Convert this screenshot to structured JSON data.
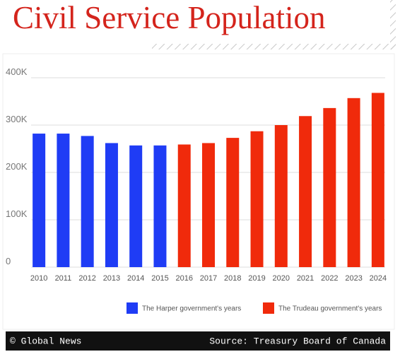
{
  "chart_data": {
    "type": "bar",
    "title": "Civil Service Population",
    "categories": [
      "2010",
      "2011",
      "2012",
      "2013",
      "2014",
      "2015",
      "2016",
      "2017",
      "2018",
      "2019",
      "2020",
      "2021",
      "2022",
      "2023",
      "2024"
    ],
    "series": [
      {
        "name": "The Harper government's years",
        "color": "#1f3cf5",
        "values": [
          282000,
          282000,
          277000,
          262000,
          257000,
          257000,
          null,
          null,
          null,
          null,
          null,
          null,
          null,
          null,
          null
        ]
      },
      {
        "name": "The Trudeau government's years",
        "color": "#f02a0b",
        "values": [
          null,
          null,
          null,
          null,
          null,
          null,
          259000,
          262000,
          273000,
          287000,
          300000,
          319000,
          336000,
          357000,
          368000
        ]
      }
    ],
    "ylim": [
      0,
      400000
    ],
    "yticks": [
      0,
      {
        "value": 100000,
        "label": "100K"
      },
      {
        "value": 200000,
        "label": "200K"
      },
      {
        "value": 300000,
        "label": "300K"
      },
      {
        "value": 400000,
        "label": "400K"
      }
    ],
    "grid": true,
    "legend": "bottom",
    "credit": "© Global News",
    "source": "Source: Treasury Board of Canada"
  }
}
